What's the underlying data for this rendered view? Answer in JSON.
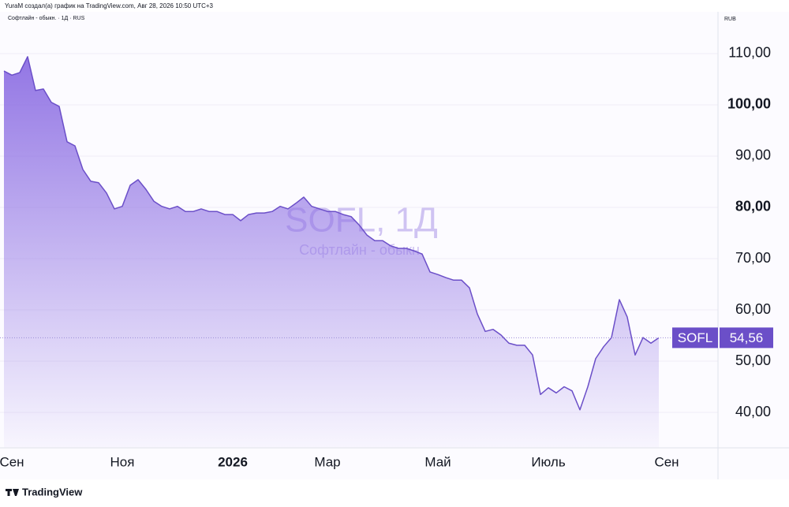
{
  "header": {
    "author_line": "YuraM создал(а) график на TradingView.com, Авг 28, 2026 10:50 UTC+3",
    "symbol_line": "Софтлайн - обыкн. · 1Д · RUS"
  },
  "footer": {
    "brand": "TradingView"
  },
  "chart_data": {
    "type": "area",
    "watermark": {
      "title": "SOFL, 1Д",
      "subtitle": "Софтлайн - обыкн."
    },
    "currency": "RUB",
    "categories": [
      null,
      "Сен",
      null,
      null,
      null,
      null,
      null,
      null,
      null,
      null,
      null,
      null,
      null,
      null,
      null,
      "Ноя",
      null,
      null,
      null,
      null,
      null,
      null,
      null,
      null,
      null,
      null,
      null,
      null,
      null,
      "2026",
      null,
      null,
      null,
      null,
      null,
      null,
      null,
      null,
      null,
      null,
      null,
      "Мар",
      null,
      null,
      null,
      null,
      null,
      null,
      null,
      null,
      null,
      null,
      null,
      null,
      null,
      "Май",
      null,
      null,
      null,
      null,
      null,
      null,
      null,
      null,
      null,
      null,
      null,
      null,
      null,
      "Июль",
      null,
      null,
      null,
      null,
      null,
      null,
      null,
      null,
      null,
      null,
      null,
      null,
      null,
      null,
      "Сен",
      null,
      null,
      null,
      null,
      null,
      null
    ],
    "series": [
      {
        "name": "SOFL",
        "color": "#6b4fc8",
        "values": [
          106.6,
          105.8,
          106.3,
          109.4,
          102.8,
          103.1,
          100.5,
          99.7,
          92.8,
          92,
          87.4,
          85.1,
          84.8,
          82.8,
          79.7,
          80.2,
          84.3,
          85.4,
          83.5,
          81.2,
          80.2,
          79.7,
          80.2,
          79.2,
          79.2,
          79.7,
          79.2,
          79.2,
          78.6,
          78.6,
          77.4,
          78.6,
          78.9,
          78.9,
          79.2,
          80.2,
          79.7,
          80.8,
          82,
          80.2,
          79.7,
          79.2,
          79.2,
          78.6,
          78.2,
          76.6,
          74.6,
          73.5,
          73.5,
          72.5,
          72,
          72,
          71.5,
          70.9,
          67.4,
          66.9,
          66.3,
          65.8,
          65.8,
          64.3,
          59.2,
          55.8,
          56.2,
          55.1,
          53.5,
          53.1,
          53.1,
          51.2,
          43.5,
          44.8,
          43.8,
          45,
          44.2,
          40.5,
          45,
          50.5,
          52.8,
          54.6,
          62,
          58.6,
          51.2,
          54.6,
          53.5,
          54.56,
          null,
          null,
          null,
          null,
          null,
          null,
          null
        ]
      }
    ],
    "last_price": {
      "name": "SOFL",
      "value": 54.56,
      "label": "54,56"
    },
    "ylim": [
      33.08,
      118.15
    ],
    "yticks": [
      {
        "value": 40,
        "label": "40,00"
      },
      {
        "value": 50,
        "label": "50,00"
      },
      {
        "value": 60,
        "label": "60,00"
      },
      {
        "value": 70,
        "label": "70,00"
      },
      {
        "value": 80,
        "label": "80,00"
      },
      {
        "value": 90,
        "label": "90,00"
      },
      {
        "value": 100,
        "label": "100,00"
      },
      {
        "value": 110,
        "label": "110,00"
      }
    ],
    "grid": true
  }
}
